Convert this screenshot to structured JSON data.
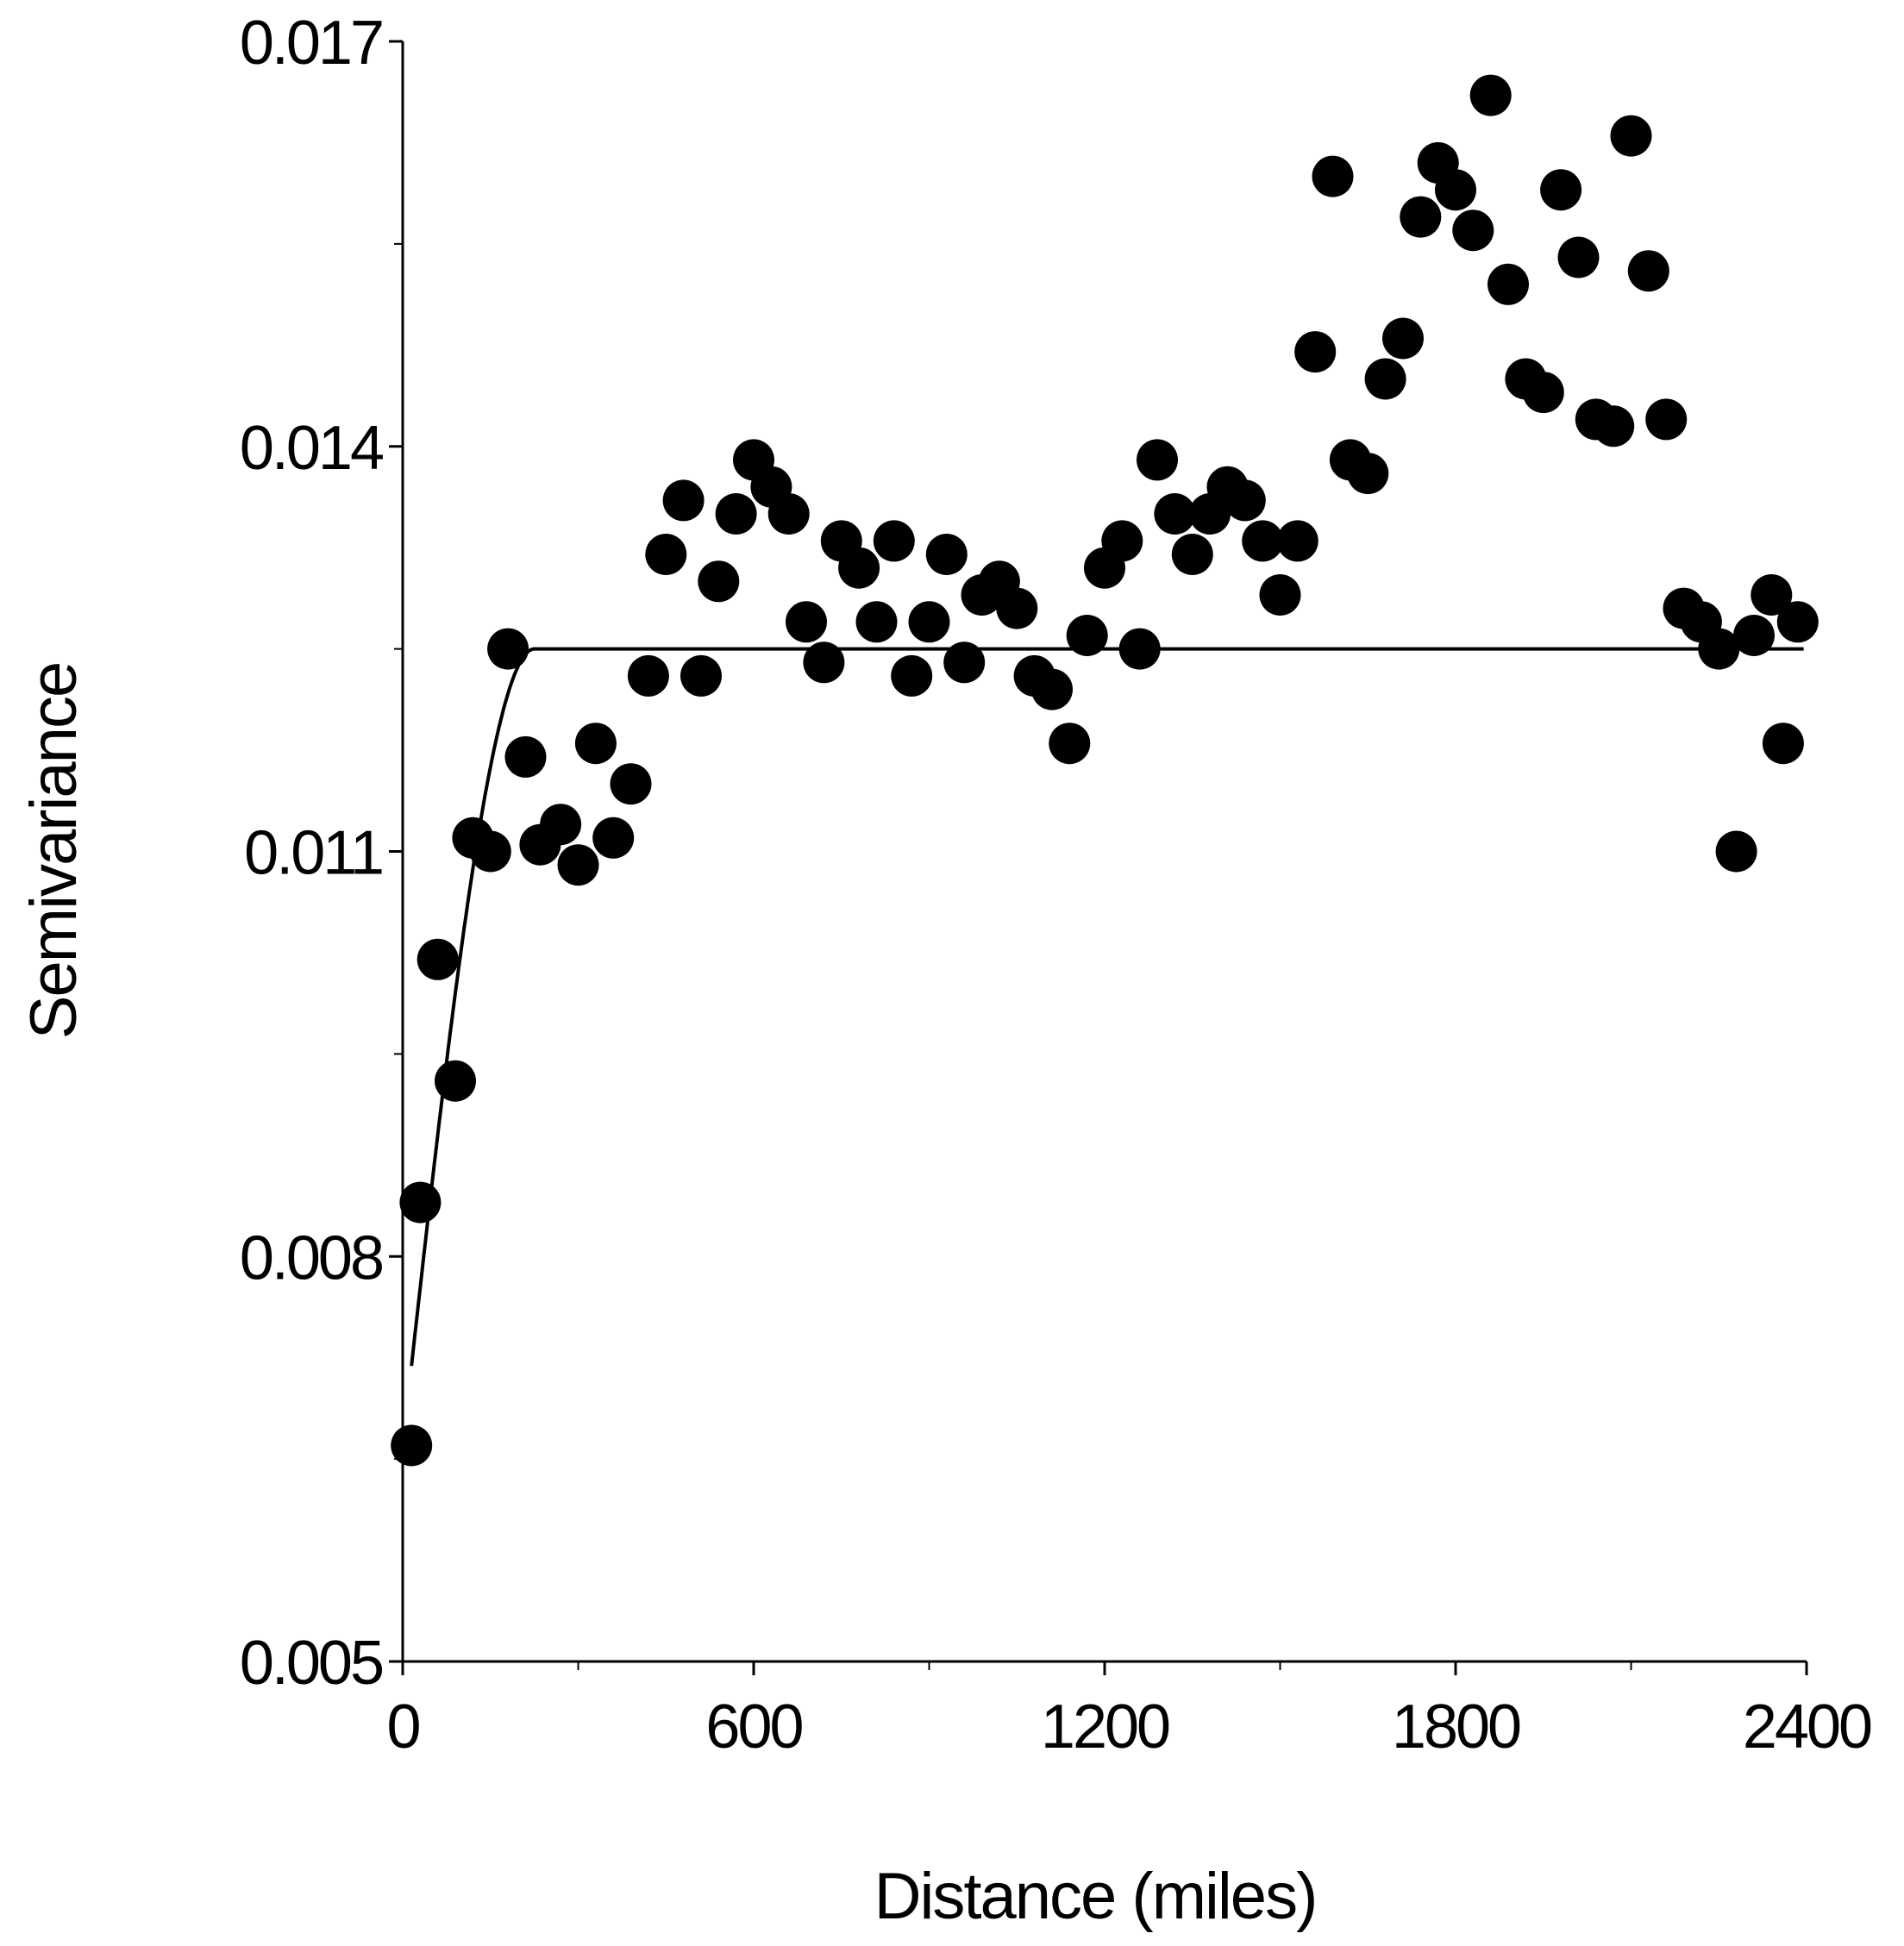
{
  "chart_data": {
    "type": "scatter",
    "xlabel": "Distance  (miles)",
    "ylabel": "Semivariance",
    "xlim": [
      0,
      2400
    ],
    "ylim": [
      0.005,
      0.017
    ],
    "x_ticks": [
      0,
      600,
      1200,
      1800,
      2400
    ],
    "x_tick_labels": [
      "0",
      "600",
      "1200",
      "1800",
      "2400"
    ],
    "y_ticks": [
      0.005,
      0.008,
      0.011,
      0.014,
      0.017
    ],
    "y_tick_labels": [
      "0.005",
      "0.008",
      "0.011",
      "0.014",
      "0.017"
    ],
    "grid": false,
    "point_color": "#000000",
    "points": [
      [
        15,
        0.0066
      ],
      [
        30,
        0.0084
      ],
      [
        60,
        0.0102
      ],
      [
        90,
        0.0093
      ],
      [
        120,
        0.0111
      ],
      [
        150,
        0.011
      ],
      [
        180,
        0.0125
      ],
      [
        210,
        0.0117
      ],
      [
        235,
        0.01105
      ],
      [
        270,
        0.0112
      ],
      [
        300,
        0.0109
      ],
      [
        330,
        0.0118
      ],
      [
        360,
        0.0111
      ],
      [
        390,
        0.0115
      ],
      [
        420,
        0.0123
      ],
      [
        450,
        0.0132
      ],
      [
        480,
        0.0136
      ],
      [
        510,
        0.0123
      ],
      [
        540,
        0.013
      ],
      [
        570,
        0.0135
      ],
      [
        600,
        0.0139
      ],
      [
        630,
        0.0137
      ],
      [
        660,
        0.0135
      ],
      [
        690,
        0.0127
      ],
      [
        720,
        0.0124
      ],
      [
        750,
        0.0133
      ],
      [
        780,
        0.0131
      ],
      [
        810,
        0.0127
      ],
      [
        840,
        0.0133
      ],
      [
        870,
        0.0123
      ],
      [
        900,
        0.0127
      ],
      [
        930,
        0.0132
      ],
      [
        960,
        0.0124
      ],
      [
        990,
        0.0129
      ],
      [
        1020,
        0.013
      ],
      [
        1050,
        0.0128
      ],
      [
        1080,
        0.0123
      ],
      [
        1110,
        0.0122
      ],
      [
        1140,
        0.0118
      ],
      [
        1170,
        0.0126
      ],
      [
        1200,
        0.0131
      ],
      [
        1230,
        0.0133
      ],
      [
        1260,
        0.0125
      ],
      [
        1290,
        0.0139
      ],
      [
        1320,
        0.0135
      ],
      [
        1350,
        0.0132
      ],
      [
        1380,
        0.0135
      ],
      [
        1410,
        0.0137
      ],
      [
        1440,
        0.0136
      ],
      [
        1470,
        0.0133
      ],
      [
        1500,
        0.0129
      ],
      [
        1530,
        0.0133
      ],
      [
        1560,
        0.0147
      ],
      [
        1590,
        0.016
      ],
      [
        1620,
        0.0139
      ],
      [
        1650,
        0.0138
      ],
      [
        1680,
        0.0145
      ],
      [
        1710,
        0.0148
      ],
      [
        1740,
        0.0157
      ],
      [
        1770,
        0.0161
      ],
      [
        1800,
        0.0159
      ],
      [
        1830,
        0.0156
      ],
      [
        1860,
        0.0166
      ],
      [
        1890,
        0.0152
      ],
      [
        1920,
        0.0145
      ],
      [
        1950,
        0.0144
      ],
      [
        1980,
        0.0159
      ],
      [
        2010,
        0.0154
      ],
      [
        2040,
        0.0142
      ],
      [
        2070,
        0.01415
      ],
      [
        2100,
        0.0163
      ],
      [
        2130,
        0.0153
      ],
      [
        2160,
        0.0142
      ],
      [
        2190,
        0.0128
      ],
      [
        2220,
        0.0127
      ],
      [
        2250,
        0.0125
      ],
      [
        2280,
        0.011
      ],
      [
        2310,
        0.0126
      ],
      [
        2340,
        0.0129
      ],
      [
        2360,
        0.0118
      ],
      [
        2385,
        0.0127
      ]
    ],
    "fitted_curve": {
      "model": "spherical",
      "nugget": 0.0066,
      "sill": 0.0125,
      "range": 225,
      "color": "#000000"
    }
  }
}
